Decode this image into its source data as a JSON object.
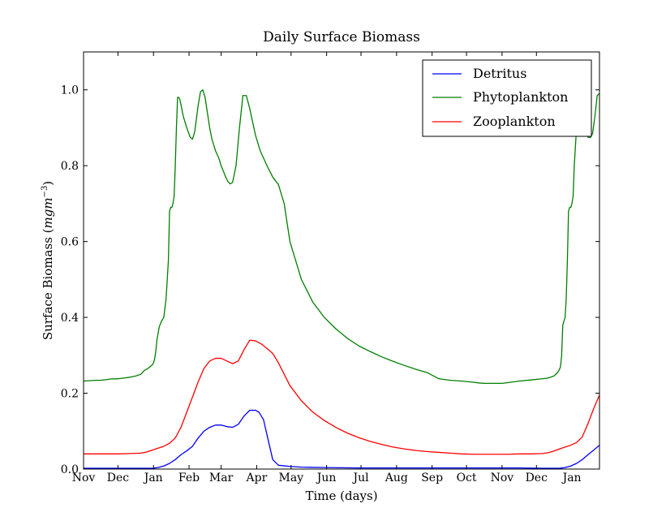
{
  "chart_data": {
    "type": "line",
    "title": "Daily Surface Biomass",
    "xlabel": "Time (days)",
    "ylabel_text": "Surface Biomass (",
    "ylabel_unit": "mgm",
    "ylabel_exp": "−3",
    "ylabel_close": ")",
    "xlim": [
      0,
      450
    ],
    "ylim": [
      0,
      1.1
    ],
    "grid": false,
    "legend_position": "top-right",
    "x_tick_values": [
      0,
      30,
      61,
      92,
      120,
      151,
      181,
      212,
      242,
      273,
      304,
      334,
      365,
      395
    ],
    "x_tick_labels": [
      "Nov",
      "Dec",
      "Jan",
      "Feb",
      "Mar",
      "Apr",
      "May",
      "Jun",
      "Jul",
      "Aug",
      "Sep",
      "Oct",
      "Nov",
      "Dec",
      "Jan"
    ],
    "x_tick_label_values": [
      0,
      30,
      61,
      92,
      120,
      151,
      181,
      212,
      242,
      273,
      304,
      334,
      365,
      395,
      426
    ],
    "y_ticks": [
      0.0,
      0.2,
      0.4,
      0.6,
      0.8,
      1.0
    ],
    "y_tick_labels": [
      "0.0",
      "0.2",
      "0.4",
      "0.6",
      "0.8",
      "1.0"
    ],
    "series": [
      {
        "name": "Detritus",
        "color": "#0000ff",
        "x": [
          0,
          30,
          60,
          65,
          70,
          75,
          80,
          85,
          90,
          95,
          100,
          105,
          110,
          115,
          120,
          125,
          130,
          135,
          140,
          145,
          150,
          153,
          155,
          157,
          160,
          165,
          170,
          180,
          190,
          210,
          240,
          270,
          300,
          330,
          360,
          380,
          400,
          415,
          420,
          425,
          430,
          435,
          440,
          445,
          450
        ],
        "y": [
          0.002,
          0.002,
          0.002,
          0.004,
          0.008,
          0.015,
          0.025,
          0.038,
          0.048,
          0.06,
          0.082,
          0.1,
          0.11,
          0.116,
          0.116,
          0.112,
          0.11,
          0.118,
          0.14,
          0.155,
          0.155,
          0.15,
          0.14,
          0.13,
          0.09,
          0.025,
          0.01,
          0.007,
          0.005,
          0.004,
          0.003,
          0.003,
          0.003,
          0.003,
          0.003,
          0.003,
          0.002,
          0.002,
          0.004,
          0.008,
          0.015,
          0.025,
          0.038,
          0.05,
          0.063
        ]
      },
      {
        "name": "Phytoplankton",
        "color": "#007f00",
        "x": [
          0,
          10,
          15,
          20,
          25,
          30,
          35,
          40,
          45,
          50,
          53,
          56,
          58,
          60,
          61,
          62,
          63,
          64,
          66,
          68,
          70,
          72,
          74,
          75,
          76,
          77,
          78,
          79,
          80,
          81,
          82,
          83,
          84,
          85,
          87,
          90,
          93,
          95,
          97,
          100,
          102,
          104,
          106,
          108,
          110,
          112,
          115,
          118,
          120,
          122,
          124,
          126,
          128,
          130,
          133,
          136,
          139,
          142,
          145,
          150,
          154,
          157,
          160,
          165,
          170,
          175,
          180,
          190,
          200,
          210,
          220,
          230,
          240,
          250,
          260,
          270,
          280,
          290,
          300,
          305,
          310,
          320,
          330,
          340,
          345,
          350,
          360,
          365,
          370,
          380,
          390,
          400,
          405,
          410,
          412,
          414,
          415,
          416,
          417,
          418,
          419,
          420,
          421,
          422,
          423,
          424,
          425,
          426,
          427,
          428,
          430,
          432,
          434,
          436,
          438,
          440,
          442,
          444,
          446,
          448,
          450
        ],
        "y": [
          0.232,
          0.234,
          0.234,
          0.236,
          0.238,
          0.238,
          0.24,
          0.242,
          0.245,
          0.25,
          0.26,
          0.265,
          0.27,
          0.275,
          0.28,
          0.29,
          0.31,
          0.34,
          0.375,
          0.39,
          0.4,
          0.45,
          0.55,
          0.68,
          0.69,
          0.69,
          0.7,
          0.72,
          0.8,
          0.9,
          0.98,
          0.98,
          0.975,
          0.96,
          0.93,
          0.9,
          0.875,
          0.87,
          0.89,
          0.96,
          0.995,
          1.0,
          0.98,
          0.94,
          0.9,
          0.87,
          0.84,
          0.82,
          0.8,
          0.785,
          0.77,
          0.758,
          0.752,
          0.756,
          0.8,
          0.9,
          0.985,
          0.985,
          0.95,
          0.88,
          0.84,
          0.82,
          0.8,
          0.77,
          0.75,
          0.7,
          0.6,
          0.5,
          0.44,
          0.4,
          0.37,
          0.345,
          0.325,
          0.31,
          0.296,
          0.284,
          0.273,
          0.263,
          0.254,
          0.246,
          0.238,
          0.234,
          0.232,
          0.229,
          0.227,
          0.226,
          0.226,
          0.226,
          0.228,
          0.232,
          0.235,
          0.238,
          0.24,
          0.245,
          0.25,
          0.257,
          0.262,
          0.27,
          0.3,
          0.38,
          0.39,
          0.4,
          0.45,
          0.55,
          0.68,
          0.69,
          0.69,
          0.7,
          0.72,
          0.8,
          0.9,
          0.94,
          0.95,
          0.93,
          0.89,
          0.875,
          0.874,
          0.885,
          0.93,
          0.985,
          0.99
        ]
      },
      {
        "name": "Zooplankton",
        "color": "#ff0000",
        "x": [
          0,
          20,
          30,
          40,
          50,
          55,
          60,
          65,
          70,
          75,
          80,
          85,
          90,
          95,
          100,
          105,
          110,
          115,
          120,
          125,
          130,
          135,
          140,
          145,
          150,
          155,
          160,
          165,
          170,
          175,
          180,
          190,
          200,
          210,
          220,
          230,
          240,
          250,
          260,
          270,
          280,
          290,
          300,
          310,
          320,
          330,
          340,
          350,
          360,
          370,
          380,
          390,
          400,
          405,
          410,
          415,
          420,
          425,
          430,
          435,
          440,
          445,
          450
        ],
        "y": [
          0.04,
          0.04,
          0.04,
          0.041,
          0.042,
          0.045,
          0.05,
          0.055,
          0.06,
          0.068,
          0.082,
          0.11,
          0.15,
          0.19,
          0.23,
          0.265,
          0.285,
          0.292,
          0.292,
          0.285,
          0.278,
          0.285,
          0.315,
          0.34,
          0.338,
          0.33,
          0.318,
          0.305,
          0.28,
          0.25,
          0.22,
          0.18,
          0.15,
          0.128,
          0.11,
          0.095,
          0.083,
          0.073,
          0.065,
          0.058,
          0.053,
          0.049,
          0.046,
          0.044,
          0.042,
          0.04,
          0.039,
          0.039,
          0.039,
          0.039,
          0.04,
          0.04,
          0.041,
          0.043,
          0.047,
          0.053,
          0.058,
          0.063,
          0.07,
          0.085,
          0.12,
          0.16,
          0.195
        ]
      }
    ]
  }
}
